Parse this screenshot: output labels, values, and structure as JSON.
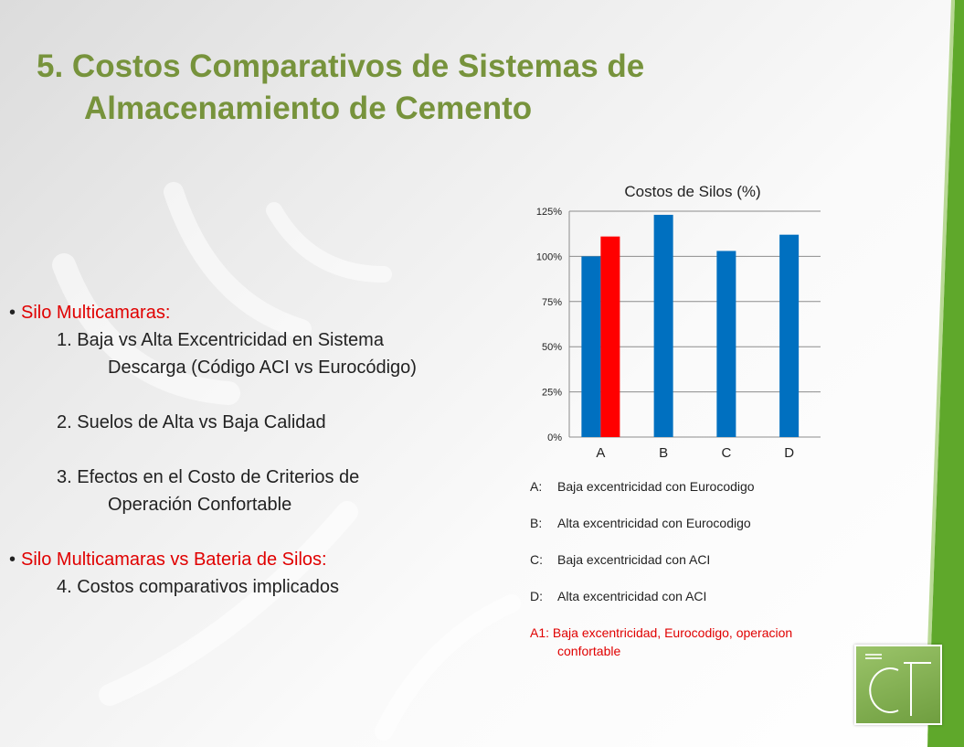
{
  "slide": {
    "title_line1": "5. Costos Comparativos de Sistemas de",
    "title_line2": "Almacenamiento de Cemento"
  },
  "bullets": {
    "b1": "Silo Multicamaras:",
    "i1a": "1. Baja vs Alta Excentricidad en Sistema",
    "i1b": "Descarga (Código ACI vs Eurocódigo)",
    "i2": "2. Suelos de Alta vs Baja Calidad",
    "i3a": "3. Efectos en el Costo de Criterios de",
    "i3b": "Operación Confortable",
    "b2": "Silo Multicamaras vs Bateria de Silos:",
    "i4": "4. Costos comparativos implicados"
  },
  "legend": {
    "a_key": "A:",
    "a_text": "Baja excentricidad con Eurocodigo",
    "b_key": "B:",
    "b_text": "Alta excentricidad con Eurocodigo",
    "c_key": "C:",
    "c_text": "Baja excentricidad con ACI",
    "d_key": "D:",
    "d_text": "Alta excentricidad con ACI",
    "a1_key": "A1:",
    "a1_text": "Baja excentricidad, Eurocodigo, operacion",
    "a1_text2": "confortable"
  },
  "colors": {
    "title_green": "#77933c",
    "bar_blue": "#0070c0",
    "bar_red": "#ff0000",
    "band_green": "#5fa82b"
  },
  "chart_data": {
    "type": "bar",
    "title": "Costos de Silos  (%)",
    "categories": [
      "A",
      "B",
      "C",
      "D"
    ],
    "series": [
      {
        "values": [
          100,
          123,
          103,
          112
        ],
        "color": "#0070c0"
      },
      {
        "values": [
          111,
          null,
          null,
          null
        ],
        "color": "#ff0000"
      }
    ],
    "ylim": [
      0,
      125
    ],
    "yticks": [
      "0%",
      "25%",
      "50%",
      "75%",
      "100%",
      "125%"
    ],
    "grid": true,
    "legend": "none"
  },
  "logo": {
    "letters": "CT"
  }
}
